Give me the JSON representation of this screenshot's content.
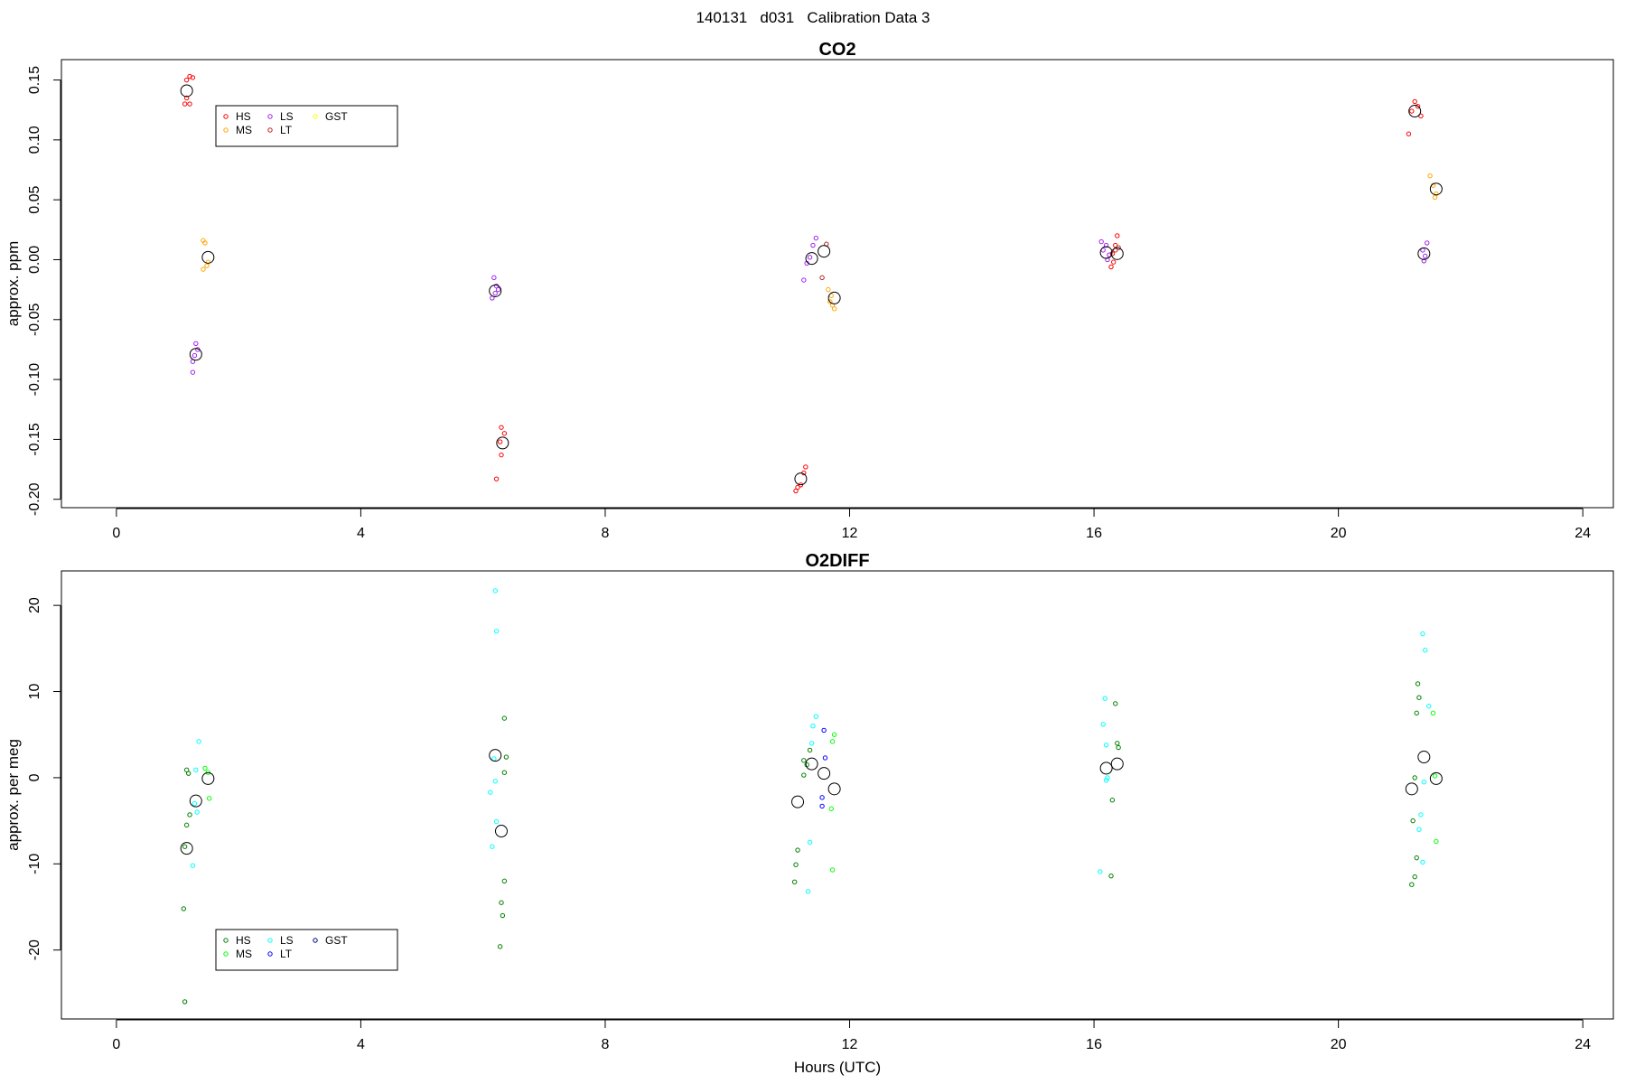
{
  "main_title": "140131   d031   Calibration Data 3",
  "chart_data": [
    {
      "type": "scatter",
      "title": "CO2",
      "xlabel": "",
      "ylabel": "approx. ppm",
      "xlim": [
        -0.9,
        24.5
      ],
      "ylim": [
        -0.207,
        0.167
      ],
      "xticks": [
        0,
        4,
        8,
        12,
        16,
        20,
        24
      ],
      "yticks": [
        -0.2,
        -0.15,
        -0.1,
        -0.05,
        0.0,
        0.05,
        0.1,
        0.15
      ],
      "ytick_labels": [
        "-0.20",
        "-0.15",
        "-0.10",
        "-0.05",
        "0.00",
        "0.05",
        "0.10",
        "0.15"
      ],
      "legend": {
        "placement": "top-left",
        "entries": [
          {
            "label": "HS",
            "color": "#ff0000"
          },
          {
            "label": "MS",
            "color": "#ffa500"
          },
          {
            "label": "LS",
            "color": "#a020f0"
          },
          {
            "label": "LT",
            "color": "#b22222"
          },
          {
            "label": "GST",
            "color": "#ffff00"
          }
        ]
      },
      "series": [
        {
          "name": "HS",
          "color": "#ff0000",
          "points": [
            [
              1.15,
              0.15
            ],
            [
              1.2,
              0.153
            ],
            [
              1.25,
              0.152
            ],
            [
              1.12,
              0.13
            ],
            [
              1.2,
              0.13
            ],
            [
              1.15,
              0.135
            ],
            [
              6.3,
              -0.14
            ],
            [
              6.35,
              -0.145
            ],
            [
              6.28,
              -0.152
            ],
            [
              6.3,
              -0.163
            ],
            [
              6.22,
              -0.183
            ],
            [
              11.28,
              -0.173
            ],
            [
              11.25,
              -0.178
            ],
            [
              11.2,
              -0.188
            ],
            [
              11.15,
              -0.19
            ],
            [
              11.12,
              -0.193
            ],
            [
              16.38,
              0.02
            ],
            [
              16.35,
              0.012
            ],
            [
              16.3,
              0.005
            ],
            [
              16.32,
              -0.002
            ],
            [
              16.28,
              -0.006
            ],
            [
              21.25,
              0.132
            ],
            [
              21.3,
              0.128
            ],
            [
              21.2,
              0.124
            ],
            [
              21.35,
              0.12
            ],
            [
              21.15,
              0.105
            ]
          ]
        },
        {
          "name": "MS",
          "color": "#ffa500",
          "points": [
            [
              1.42,
              0.016
            ],
            [
              1.45,
              0.014
            ],
            [
              1.5,
              -0.002
            ],
            [
              1.48,
              -0.005
            ],
            [
              1.42,
              -0.008
            ],
            [
              11.65,
              -0.025
            ],
            [
              11.7,
              -0.03
            ],
            [
              11.68,
              -0.035
            ],
            [
              11.72,
              -0.038
            ],
            [
              11.75,
              -0.041
            ],
            [
              21.5,
              0.07
            ],
            [
              21.55,
              0.062
            ],
            [
              21.6,
              0.055
            ],
            [
              21.58,
              0.052
            ]
          ]
        },
        {
          "name": "LS",
          "color": "#a020f0",
          "points": [
            [
              1.3,
              -0.07
            ],
            [
              1.33,
              -0.075
            ],
            [
              1.28,
              -0.08
            ],
            [
              1.25,
              -0.085
            ],
            [
              1.25,
              -0.094
            ],
            [
              6.18,
              -0.015
            ],
            [
              6.22,
              -0.022
            ],
            [
              6.25,
              -0.025
            ],
            [
              6.2,
              -0.028
            ],
            [
              6.15,
              -0.032
            ],
            [
              11.45,
              0.018
            ],
            [
              11.4,
              0.012
            ],
            [
              11.35,
              0.002
            ],
            [
              11.3,
              -0.003
            ],
            [
              11.25,
              -0.017
            ],
            [
              16.12,
              0.015
            ],
            [
              16.2,
              0.012
            ],
            [
              16.15,
              0.008
            ],
            [
              16.25,
              0.004
            ],
            [
              16.22,
              0.0
            ],
            [
              21.45,
              0.014
            ],
            [
              21.38,
              0.008
            ],
            [
              21.42,
              0.003
            ],
            [
              21.4,
              -0.001
            ]
          ]
        },
        {
          "name": "LT",
          "color": "#b22222",
          "points": [
            [
              11.62,
              0.013
            ],
            [
              11.55,
              -0.015
            ],
            [
              16.4,
              0.01
            ],
            [
              16.35,
              0.008
            ]
          ]
        },
        {
          "name": "GST",
          "color": "#ffff00",
          "points": []
        }
      ],
      "means": [
        [
          1.15,
          0.141
        ],
        [
          1.5,
          0.002
        ],
        [
          1.3,
          -0.079
        ],
        [
          6.2,
          -0.026
        ],
        [
          6.32,
          -0.153
        ],
        [
          11.2,
          -0.183
        ],
        [
          11.38,
          0.001
        ],
        [
          11.58,
          0.007
        ],
        [
          11.75,
          -0.032
        ],
        [
          16.2,
          0.006
        ],
        [
          16.38,
          0.005
        ],
        [
          21.25,
          0.124
        ],
        [
          21.6,
          0.059
        ],
        [
          21.4,
          0.005
        ]
      ]
    },
    {
      "type": "scatter",
      "title": "O2DIFF",
      "xlabel": "Hours (UTC)",
      "ylabel": "approx. per meg",
      "xlim": [
        -0.9,
        24.5
      ],
      "ylim": [
        -28,
        24
      ],
      "xticks": [
        0,
        4,
        8,
        12,
        16,
        20,
        24
      ],
      "yticks": [
        -20,
        -10,
        0,
        10,
        20
      ],
      "ytick_labels": [
        "-20",
        "-10",
        "0",
        "10",
        "20"
      ],
      "legend": {
        "placement": "bottom-left",
        "entries": [
          {
            "label": "HS",
            "color": "#008000"
          },
          {
            "label": "MS",
            "color": "#00ff00"
          },
          {
            "label": "LS",
            "color": "#00ffff"
          },
          {
            "label": "LT",
            "color": "#0000ff"
          },
          {
            "label": "GST",
            "color": "#00008b"
          }
        ]
      },
      "series": [
        {
          "name": "HS",
          "color": "#008000",
          "points": [
            [
              1.15,
              0.9
            ],
            [
              1.18,
              0.5
            ],
            [
              1.2,
              -4.3
            ],
            [
              1.15,
              -5.5
            ],
            [
              1.12,
              -8.0
            ],
            [
              1.1,
              -15.2
            ],
            [
              1.12,
              -26.0
            ],
            [
              6.35,
              6.9
            ],
            [
              6.38,
              2.4
            ],
            [
              6.35,
              0.6
            ],
            [
              6.35,
              -12.0
            ],
            [
              6.3,
              -14.5
            ],
            [
              6.32,
              -16.0
            ],
            [
              6.28,
              -19.6
            ],
            [
              11.35,
              3.2
            ],
            [
              11.25,
              2.0
            ],
            [
              11.3,
              1.5
            ],
            [
              11.25,
              0.3
            ],
            [
              11.15,
              -8.4
            ],
            [
              11.12,
              -10.1
            ],
            [
              11.1,
              -12.1
            ],
            [
              16.35,
              8.6
            ],
            [
              16.38,
              4.0
            ],
            [
              16.4,
              3.5
            ],
            [
              16.3,
              -2.6
            ],
            [
              16.28,
              -11.4
            ],
            [
              21.3,
              10.9
            ],
            [
              21.32,
              9.3
            ],
            [
              21.28,
              7.5
            ],
            [
              21.25,
              0.0
            ],
            [
              21.22,
              -5.0
            ],
            [
              21.28,
              -9.3
            ],
            [
              21.25,
              -11.5
            ],
            [
              21.2,
              -12.4
            ]
          ]
        },
        {
          "name": "MS",
          "color": "#00ff00",
          "points": [
            [
              1.45,
              1.1
            ],
            [
              1.5,
              0.6
            ],
            [
              1.52,
              -2.4
            ],
            [
              11.75,
              5.0
            ],
            [
              11.72,
              4.2
            ],
            [
              11.7,
              -3.6
            ],
            [
              11.72,
              -10.7
            ],
            [
              21.55,
              7.5
            ],
            [
              21.58,
              0.2
            ],
            [
              21.6,
              -7.4
            ]
          ]
        },
        {
          "name": "LS",
          "color": "#00ffff",
          "points": [
            [
              1.35,
              4.2
            ],
            [
              1.3,
              0.9
            ],
            [
              1.28,
              -3.0
            ],
            [
              1.32,
              -4.0
            ],
            [
              1.25,
              -10.2
            ],
            [
              6.2,
              21.7
            ],
            [
              6.22,
              17.0
            ],
            [
              6.18,
              2.2
            ],
            [
              6.2,
              -0.4
            ],
            [
              6.12,
              -1.7
            ],
            [
              6.15,
              -8.0
            ],
            [
              6.22,
              -5.1
            ],
            [
              11.45,
              7.1
            ],
            [
              11.4,
              6.0
            ],
            [
              11.38,
              4.0
            ],
            [
              11.35,
              -7.5
            ],
            [
              11.32,
              -13.2
            ],
            [
              16.18,
              9.2
            ],
            [
              16.15,
              6.2
            ],
            [
              16.2,
              3.8
            ],
            [
              16.22,
              0.0
            ],
            [
              16.2,
              -0.3
            ],
            [
              16.1,
              -10.9
            ],
            [
              21.38,
              16.7
            ],
            [
              21.42,
              14.8
            ],
            [
              21.48,
              8.3
            ],
            [
              21.4,
              -0.5
            ],
            [
              21.35,
              -4.3
            ],
            [
              21.32,
              -6.0
            ],
            [
              21.38,
              -9.8
            ]
          ]
        },
        {
          "name": "LT",
          "color": "#0000ff",
          "points": [
            [
              11.58,
              5.5
            ],
            [
              11.6,
              2.3
            ],
            [
              11.55,
              -2.3
            ],
            [
              11.55,
              -3.3
            ]
          ]
        },
        {
          "name": "GST",
          "color": "#00008b",
          "points": []
        }
      ],
      "means": [
        [
          1.15,
          -8.2
        ],
        [
          1.3,
          -2.7
        ],
        [
          1.5,
          -0.1
        ],
        [
          6.2,
          2.6
        ],
        [
          6.3,
          -6.2
        ],
        [
          11.15,
          -2.8
        ],
        [
          11.38,
          1.6
        ],
        [
          11.58,
          0.5
        ],
        [
          11.75,
          -1.3
        ],
        [
          16.2,
          1.1
        ],
        [
          16.38,
          1.6
        ],
        [
          21.2,
          -1.3
        ],
        [
          21.4,
          2.4
        ],
        [
          21.6,
          -0.1
        ]
      ]
    }
  ]
}
